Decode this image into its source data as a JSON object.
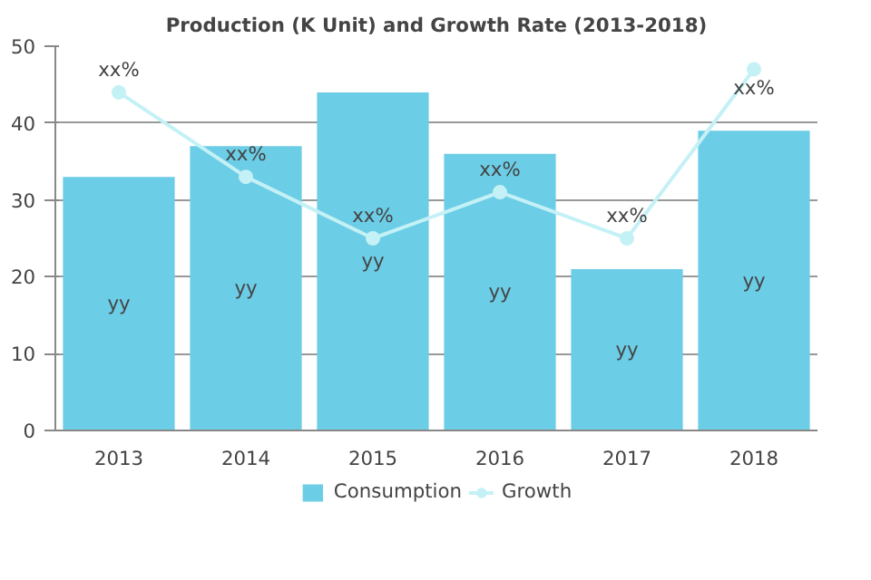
{
  "chart_data": {
    "type": "bar",
    "title": "Production (K Unit) and Growth Rate (2013-2018)",
    "categories": [
      "2013",
      "2014",
      "2015",
      "2016",
      "2017",
      "2018"
    ],
    "series": [
      {
        "name": "Consumption",
        "color": "#6ccde6",
        "values": [
          33,
          37,
          44,
          36,
          21,
          39
        ],
        "value_labels": [
          "yy",
          "yy",
          "yy",
          "yy",
          "yy",
          "yy"
        ]
      },
      {
        "name": "Growth",
        "type": "line",
        "color": "#c4f1f6",
        "values": [
          44,
          33,
          25,
          31,
          25,
          47
        ],
        "value_labels": [
          "xx%",
          "xx%",
          "xx%",
          "xx%",
          "xx%",
          "xx%"
        ]
      }
    ],
    "ylim": [
      0,
      50
    ],
    "yticks": [
      0,
      10,
      20,
      30,
      40,
      50
    ],
    "grid": "y",
    "legend": "bottom",
    "marker": "circle"
  }
}
